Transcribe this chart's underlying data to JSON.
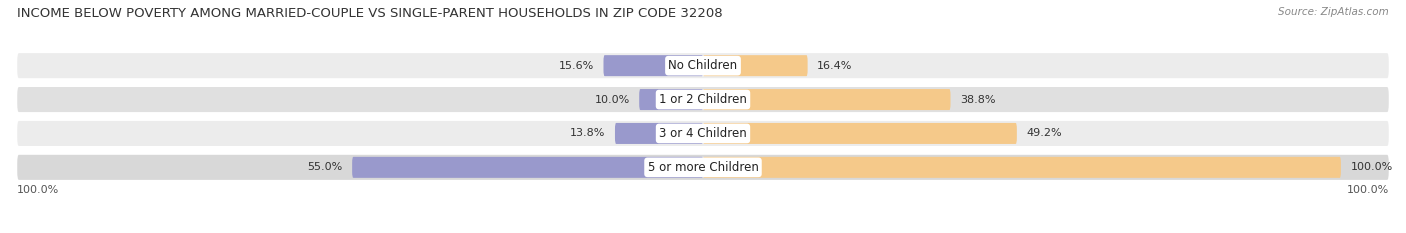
{
  "title": "INCOME BELOW POVERTY AMONG MARRIED-COUPLE VS SINGLE-PARENT HOUSEHOLDS IN ZIP CODE 32208",
  "source": "Source: ZipAtlas.com",
  "categories": [
    "No Children",
    "1 or 2 Children",
    "3 or 4 Children",
    "5 or more Children"
  ],
  "married_values": [
    15.6,
    10.0,
    13.8,
    55.0
  ],
  "single_values": [
    16.4,
    38.8,
    49.2,
    100.0
  ],
  "married_color": "#9999cc",
  "single_color": "#f5c98a",
  "row_bg_colors": [
    "#ececec",
    "#e0e0e0",
    "#ececec",
    "#d8d8d8"
  ],
  "axis_label_left": "100.0%",
  "axis_label_right": "100.0%",
  "title_fontsize": 9.5,
  "source_fontsize": 7.5,
  "label_fontsize": 8,
  "category_fontsize": 8.5,
  "max_val": 100
}
